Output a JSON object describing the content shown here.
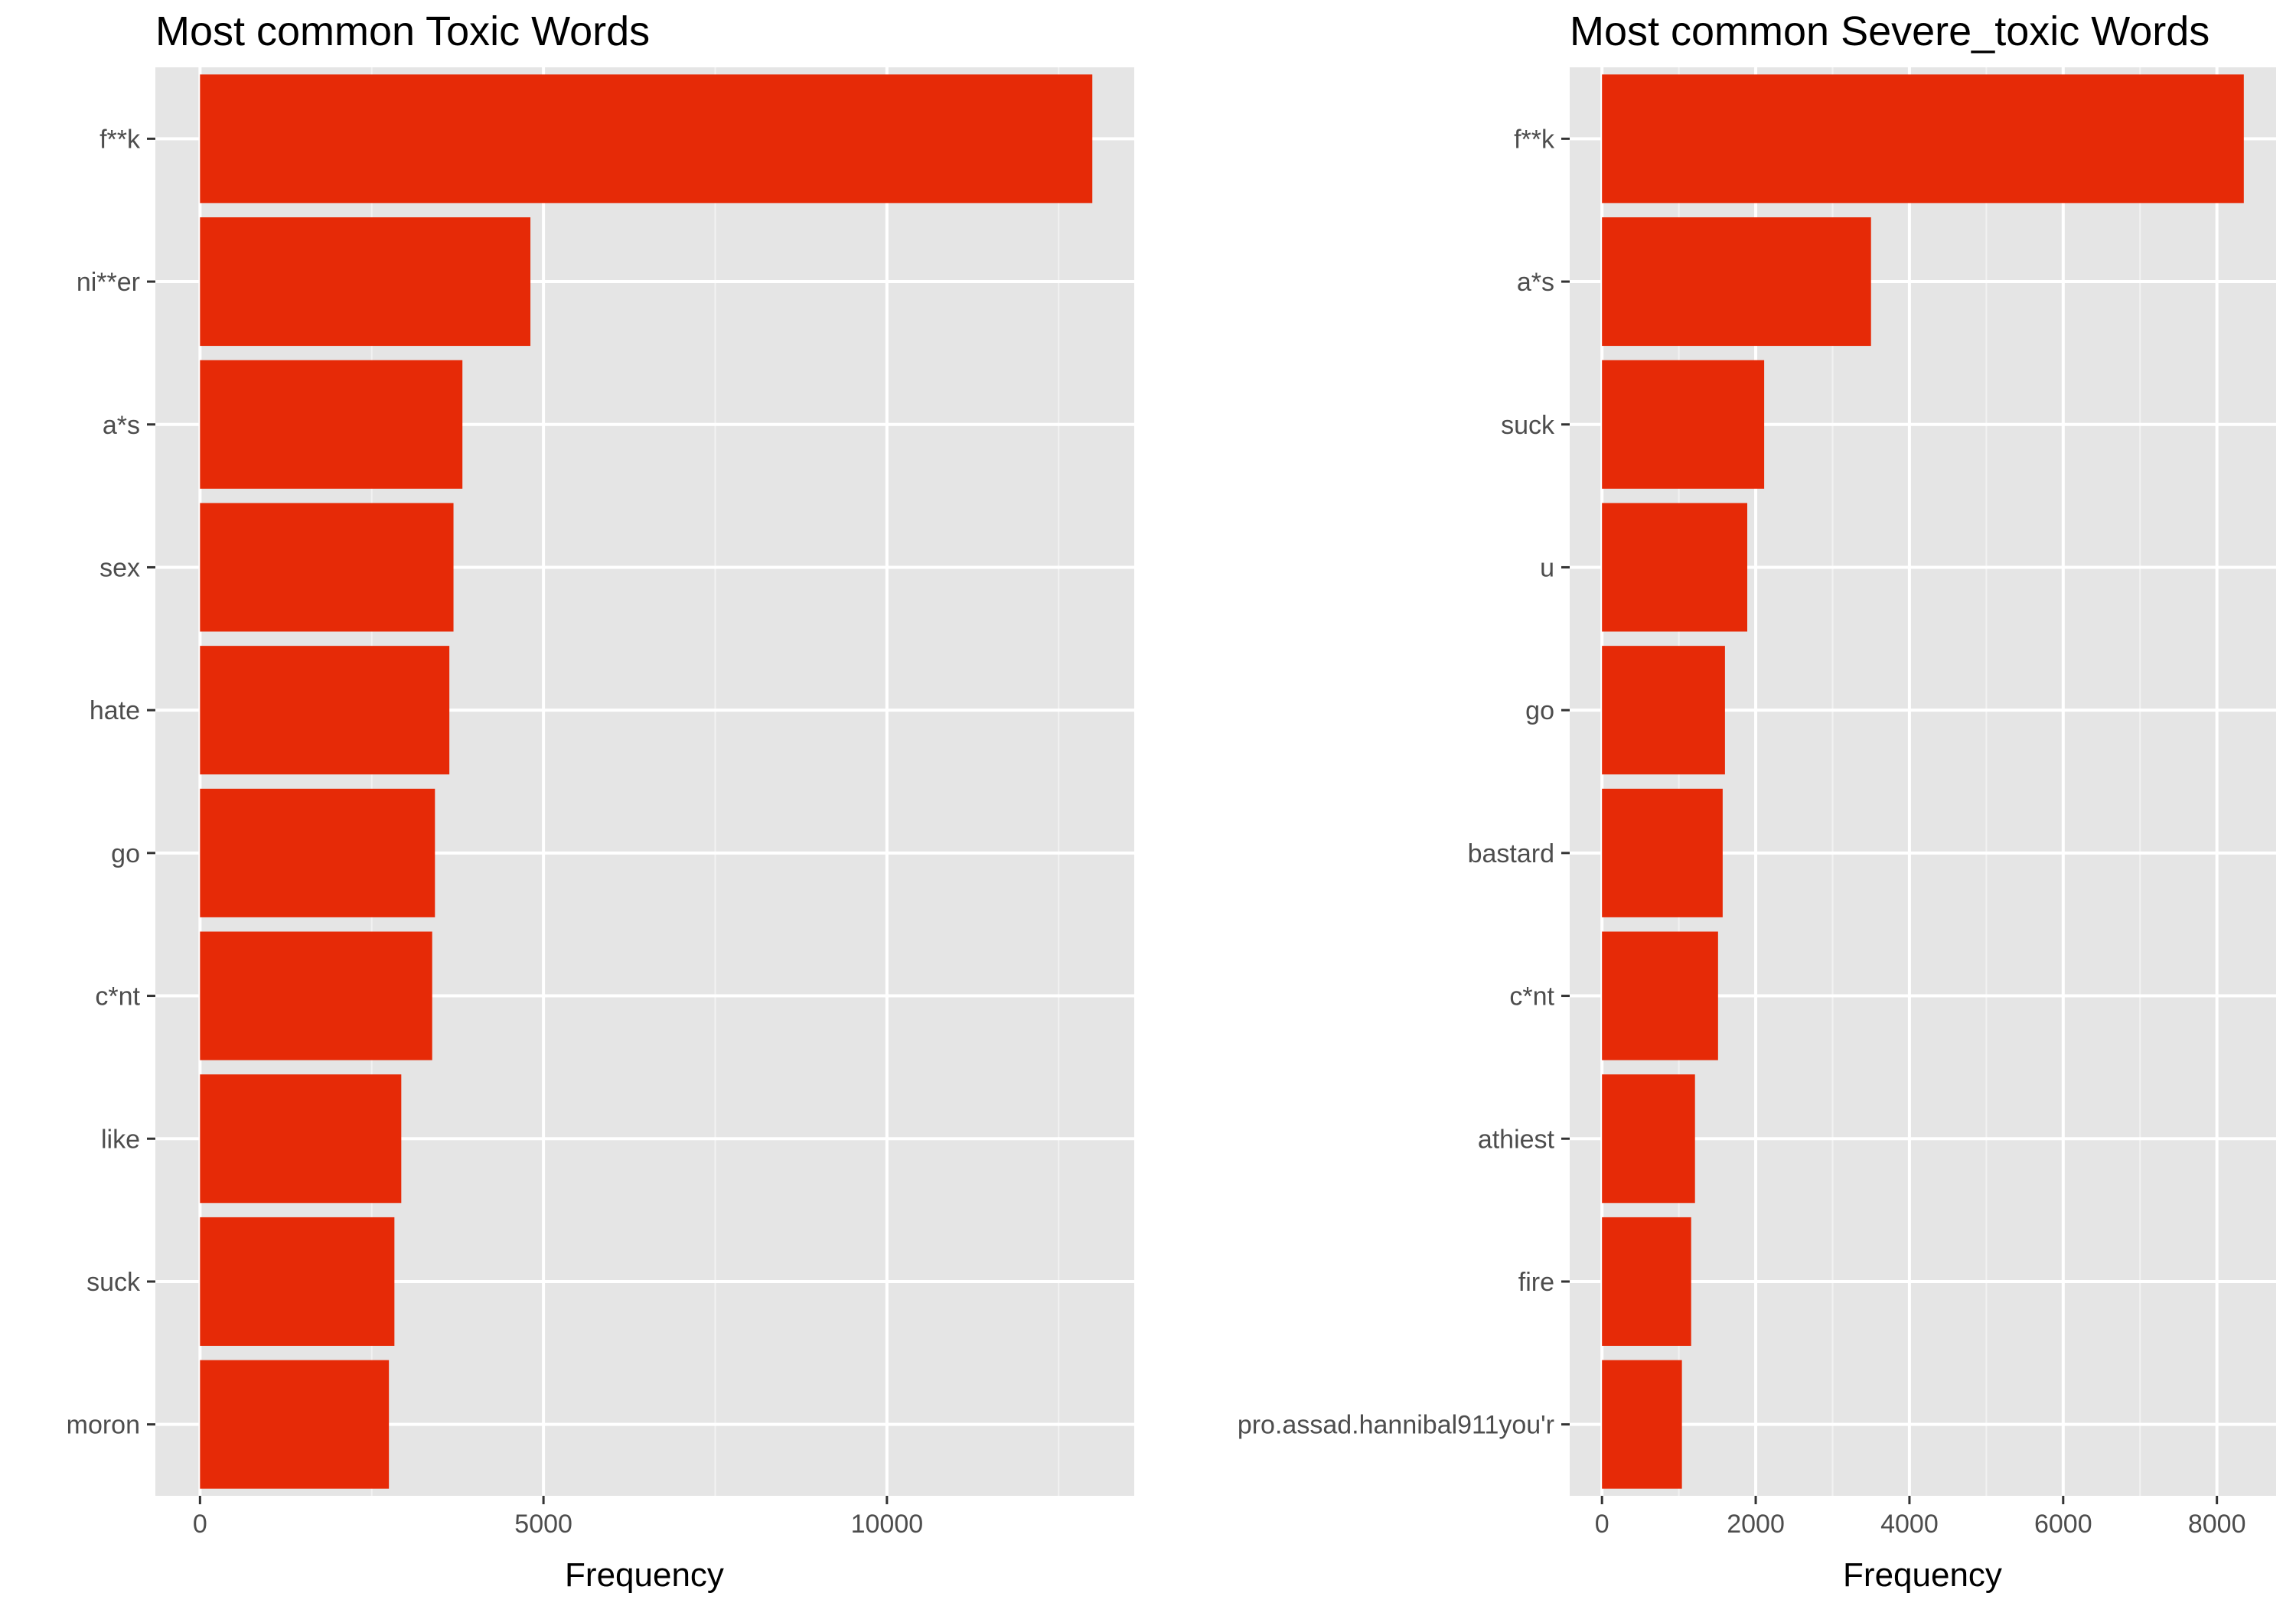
{
  "colors": {
    "bar": "#e62a07",
    "panel_background": "#e5e5e5",
    "grid_major": "#ffffff",
    "grid_minor": "#f2f2f2",
    "tick_text": "#4d4d4d",
    "tick_mark": "#333333"
  },
  "chart_data": [
    {
      "type": "bar",
      "orientation": "horizontal",
      "title": "Most common Toxic Words",
      "xlabel": "Frequency",
      "ylabel": "",
      "categories": [
        "f**k",
        "ni**er",
        "a*s",
        "sex",
        "hate",
        "go",
        "c*nt",
        "like",
        "suck",
        "moron"
      ],
      "values": [
        12990,
        4810,
        3820,
        3690,
        3630,
        3420,
        3380,
        2930,
        2830,
        2750
      ],
      "xlim": [
        -650,
        13600
      ],
      "xticks": [
        0,
        5000,
        10000
      ],
      "xtick_labels": [
        "0",
        "5000",
        "10000"
      ],
      "grid": true
    },
    {
      "type": "bar",
      "orientation": "horizontal",
      "title": "Most common Severe_toxic Words",
      "xlabel": "Frequency",
      "ylabel": "",
      "categories": [
        "f**k",
        "a*s",
        "suck",
        "u",
        "go",
        "bastard",
        "c*nt",
        "athiest",
        "fire",
        "pro.assad.hannibal911you'r"
      ],
      "values": [
        8350,
        3500,
        2110,
        1890,
        1600,
        1570,
        1510,
        1210,
        1160,
        1040
      ],
      "xlim": [
        -420,
        8770
      ],
      "xticks": [
        0,
        2000,
        4000,
        6000,
        8000
      ],
      "xtick_labels": [
        "0",
        "2000",
        "4000",
        "6000",
        "8000"
      ],
      "grid": true
    }
  ]
}
